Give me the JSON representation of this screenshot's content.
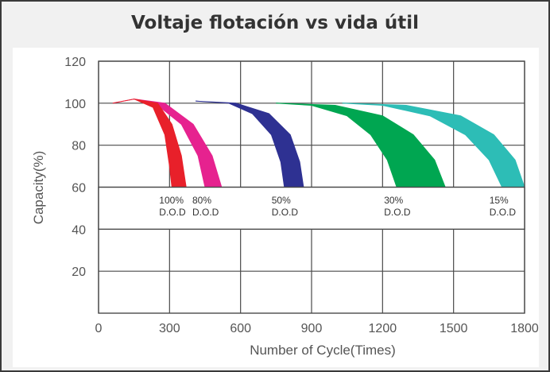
{
  "chart_data": {
    "type": "band",
    "title": "Voltaje flotación vs vida útil",
    "x_label": "Number of Cycle(Times)",
    "y_label": "Capacity(%)",
    "xlim": [
      0,
      1800
    ],
    "xticks": [
      0,
      300,
      600,
      900,
      1200,
      1500,
      1800
    ],
    "ylim": [
      0,
      120
    ],
    "yticks": [
      20,
      40,
      60,
      80,
      100,
      120
    ],
    "grid": true,
    "series": [
      {
        "name": "100% D.O.D",
        "color": "#e8202a",
        "inner": {
          "x": [
            60,
            150,
            230,
            280,
            300,
            310
          ],
          "values": [
            100,
            102,
            98,
            85,
            70,
            60
          ]
        },
        "outer": {
          "x": [
            60,
            150,
            250,
            310,
            350,
            370
          ],
          "values": [
            100,
            102,
            100,
            90,
            75,
            60
          ]
        }
      },
      {
        "name": "80% D.O.D",
        "color": "#e6228f",
        "inner": {
          "x": [
            60,
            150,
            250,
            350,
            420,
            450
          ],
          "values": [
            100,
            102,
            99,
            90,
            75,
            60
          ]
        },
        "outer": {
          "x": [
            60,
            150,
            280,
            400,
            480,
            520
          ],
          "values": [
            100,
            102,
            100,
            90,
            75,
            60
          ]
        }
      },
      {
        "name": "50% D.O.D",
        "color": "#2e3192",
        "inner": {
          "x": [
            410,
            550,
            650,
            730,
            770,
            785
          ],
          "values": [
            101,
            100,
            95,
            85,
            72,
            60
          ]
        },
        "outer": {
          "x": [
            410,
            580,
            720,
            810,
            850,
            866
          ],
          "values": [
            101,
            100,
            95,
            85,
            72,
            60
          ]
        }
      },
      {
        "name": "30% D.O.D",
        "color": "#00a651",
        "inner": {
          "x": [
            750,
            900,
            1050,
            1150,
            1220,
            1260
          ],
          "values": [
            100,
            99,
            94,
            85,
            73,
            60
          ]
        },
        "outer": {
          "x": [
            750,
            1000,
            1200,
            1330,
            1420,
            1465
          ],
          "values": [
            100,
            99,
            94,
            85,
            73,
            60
          ]
        }
      },
      {
        "name": "15% D.O.D",
        "color": "#2dbdb6",
        "inner": {
          "x": [
            1030,
            1200,
            1400,
            1550,
            1650,
            1705
          ],
          "values": [
            100,
            99,
            94,
            85,
            73,
            60
          ]
        },
        "outer": {
          "x": [
            1030,
            1300,
            1530,
            1670,
            1760,
            1800
          ],
          "values": [
            100,
            99,
            94,
            85,
            73,
            60
          ]
        }
      }
    ]
  }
}
